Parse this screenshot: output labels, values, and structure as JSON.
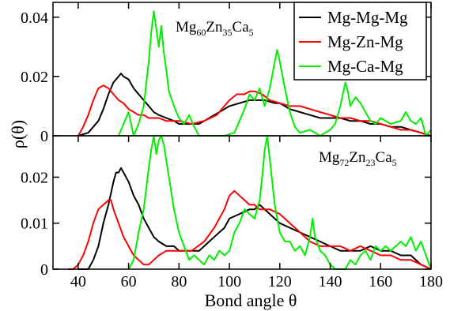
{
  "chart_data": [
    {
      "type": "line",
      "composition": {
        "base": [
          "Mg",
          "Zn",
          "Ca"
        ],
        "subscripts": [
          "60",
          "35",
          "5"
        ]
      },
      "ylim": [
        0,
        0.045
      ],
      "yticks": [
        0,
        0.02,
        0.04
      ],
      "ytick_labels": [
        "0",
        "0.02",
        "0.04"
      ],
      "legend": {
        "position": "top-right",
        "entries": [
          "Mg-Mg-Mg",
          "Mg-Zn-Mg",
          "Mg-Ca-Mg"
        ]
      },
      "series": [
        {
          "name": "Mg-Mg-Mg",
          "color": "#000000",
          "x": [
            40,
            44,
            48,
            50,
            52,
            54,
            56,
            57,
            58,
            60,
            62,
            64,
            66,
            68,
            70,
            72,
            75,
            78,
            80,
            84,
            88,
            90,
            94,
            98,
            100,
            104,
            108,
            110,
            114,
            118,
            120,
            124,
            128,
            132,
            136,
            140,
            144,
            148,
            152,
            156,
            160,
            164,
            168,
            172,
            176,
            180
          ],
          "y": [
            0.0,
            0.001,
            0.005,
            0.009,
            0.014,
            0.018,
            0.02,
            0.021,
            0.02,
            0.019,
            0.016,
            0.014,
            0.012,
            0.01,
            0.008,
            0.007,
            0.006,
            0.005,
            0.004,
            0.004,
            0.004,
            0.005,
            0.007,
            0.009,
            0.01,
            0.011,
            0.012,
            0.012,
            0.012,
            0.011,
            0.011,
            0.009,
            0.008,
            0.007,
            0.006,
            0.006,
            0.006,
            0.005,
            0.005,
            0.004,
            0.004,
            0.003,
            0.003,
            0.002,
            0.001,
            0.0
          ]
        },
        {
          "name": "Mg-Zn-Mg",
          "color": "#ff0000",
          "x": [
            40,
            42,
            44,
            46,
            48,
            50,
            52,
            54,
            56,
            58,
            60,
            62,
            64,
            66,
            68,
            70,
            72,
            75,
            80,
            85,
            90,
            95,
            98,
            100,
            103,
            106,
            108,
            110,
            113,
            116,
            120,
            124,
            128,
            132,
            136,
            140,
            144,
            148,
            152,
            156,
            160,
            164,
            168,
            172,
            176,
            180
          ],
          "y": [
            0.0,
            0.003,
            0.007,
            0.012,
            0.016,
            0.017,
            0.016,
            0.014,
            0.012,
            0.011,
            0.009,
            0.008,
            0.007,
            0.007,
            0.006,
            0.006,
            0.006,
            0.005,
            0.005,
            0.004,
            0.005,
            0.007,
            0.01,
            0.012,
            0.014,
            0.014,
            0.015,
            0.015,
            0.014,
            0.012,
            0.011,
            0.01,
            0.01,
            0.009,
            0.008,
            0.007,
            0.006,
            0.006,
            0.005,
            0.005,
            0.004,
            0.003,
            0.002,
            0.002,
            0.001,
            0.0
          ]
        },
        {
          "name": "Mg-Ca-Mg",
          "color": "#00ee00",
          "x": [
            56,
            58,
            60,
            62,
            64,
            66,
            68,
            69,
            70,
            71,
            72,
            73,
            74,
            75,
            76,
            78,
            80,
            82,
            84,
            86,
            88,
            90,
            94,
            98,
            102,
            106,
            108,
            110,
            112,
            114,
            116,
            118,
            119,
            120,
            122,
            124,
            126,
            128,
            132,
            136,
            140,
            142,
            144,
            146,
            147,
            148,
            150,
            152,
            154,
            156,
            158,
            160,
            164,
            168,
            170,
            172,
            174,
            176,
            178,
            180
          ],
          "y": [
            0.0,
            0.004,
            0.008,
            0.0,
            0.004,
            0.01,
            0.025,
            0.035,
            0.042,
            0.036,
            0.03,
            0.037,
            0.028,
            0.022,
            0.015,
            0.01,
            0.006,
            0.004,
            0.007,
            0.003,
            0.0,
            0.0,
            0.0,
            0.0,
            0.001,
            0.009,
            0.014,
            0.012,
            0.016,
            0.01,
            0.016,
            0.025,
            0.029,
            0.025,
            0.016,
            0.008,
            0.003,
            0.001,
            0.002,
            0.0,
            0.002,
            0.004,
            0.01,
            0.018,
            0.015,
            0.01,
            0.013,
            0.011,
            0.008,
            0.005,
            0.004,
            0.006,
            0.004,
            0.005,
            0.008,
            0.005,
            0.004,
            0.006,
            0.0,
            0.002
          ]
        }
      ]
    },
    {
      "type": "line",
      "composition": {
        "base": [
          "Mg",
          "Zn",
          "Ca"
        ],
        "subscripts": [
          "72",
          "23",
          "5"
        ]
      },
      "ylim": [
        0,
        0.029
      ],
      "yticks": [
        0,
        0.01,
        0.02
      ],
      "ytick_labels": [
        "0",
        "0.01",
        "0.02"
      ],
      "xlim": [
        30,
        180
      ],
      "xticks": [
        40,
        60,
        80,
        100,
        120,
        140,
        160,
        180
      ],
      "xtick_labels": [
        "40",
        "60",
        "80",
        "100",
        "120",
        "140",
        "160",
        "180"
      ],
      "xlabel": "Bond angle θ",
      "ylabel": "ρ(θ)",
      "series": [
        {
          "name": "Mg-Mg-Mg",
          "color": "#000000",
          "x": [
            40,
            44,
            46,
            48,
            50,
            52,
            54,
            55,
            56,
            57,
            58,
            60,
            62,
            64,
            66,
            68,
            70,
            72,
            75,
            78,
            80,
            84,
            88,
            90,
            94,
            98,
            100,
            104,
            108,
            110,
            112,
            116,
            120,
            124,
            128,
            132,
            136,
            140,
            144,
            148,
            152,
            156,
            160,
            164,
            168,
            172,
            176,
            180
          ],
          "y": [
            0.0,
            0.0,
            0.002,
            0.005,
            0.01,
            0.014,
            0.019,
            0.021,
            0.021,
            0.022,
            0.021,
            0.019,
            0.016,
            0.014,
            0.011,
            0.009,
            0.007,
            0.006,
            0.005,
            0.005,
            0.004,
            0.004,
            0.004,
            0.005,
            0.007,
            0.009,
            0.011,
            0.012,
            0.013,
            0.013,
            0.014,
            0.012,
            0.01,
            0.009,
            0.008,
            0.007,
            0.006,
            0.005,
            0.004,
            0.004,
            0.004,
            0.005,
            0.004,
            0.004,
            0.003,
            0.003,
            0.001,
            0.0
          ]
        },
        {
          "name": "Mg-Zn-Mg",
          "color": "#ff0000",
          "x": [
            36,
            38,
            40,
            42,
            44,
            46,
            48,
            50,
            52,
            53,
            54,
            56,
            58,
            60,
            62,
            64,
            66,
            68,
            70,
            72,
            75,
            80,
            85,
            90,
            94,
            98,
            100,
            102,
            104,
            106,
            108,
            110,
            112,
            116,
            120,
            124,
            128,
            132,
            136,
            140,
            144,
            148,
            152,
            156,
            160,
            164,
            168,
            172,
            176,
            180
          ],
          "y": [
            0.0,
            0.0,
            0.001,
            0.003,
            0.006,
            0.01,
            0.013,
            0.014,
            0.015,
            0.015,
            0.013,
            0.01,
            0.007,
            0.005,
            0.003,
            0.002,
            0.001,
            0.001,
            0.002,
            0.003,
            0.004,
            0.004,
            0.004,
            0.006,
            0.009,
            0.013,
            0.016,
            0.017,
            0.016,
            0.015,
            0.014,
            0.014,
            0.013,
            0.013,
            0.012,
            0.01,
            0.008,
            0.006,
            0.005,
            0.005,
            0.005,
            0.004,
            0.005,
            0.004,
            0.003,
            0.003,
            0.002,
            0.002,
            0.001,
            0.0
          ]
        },
        {
          "name": "Mg-Ca-Mg",
          "color": "#00ee00",
          "x": [
            60,
            62,
            64,
            66,
            68,
            69,
            70,
            71,
            72,
            73,
            74,
            76,
            78,
            80,
            82,
            84,
            86,
            88,
            90,
            92,
            94,
            96,
            98,
            100,
            102,
            104,
            106,
            108,
            110,
            112,
            113,
            114,
            115,
            116,
            118,
            120,
            122,
            124,
            126,
            128,
            130,
            132,
            133,
            134,
            136,
            138,
            140,
            142,
            144,
            146,
            148,
            150,
            152,
            154,
            156,
            158,
            160,
            162,
            164,
            166,
            168,
            170,
            172,
            174,
            176,
            178,
            180
          ],
          "y": [
            0.0,
            0.002,
            0.008,
            0.013,
            0.022,
            0.026,
            0.029,
            0.025,
            0.028,
            0.029,
            0.027,
            0.02,
            0.013,
            0.008,
            0.005,
            0.002,
            0.003,
            0.002,
            0.001,
            0.003,
            0.002,
            0.004,
            0.003,
            0.004,
            0.008,
            0.01,
            0.013,
            0.012,
            0.011,
            0.015,
            0.02,
            0.026,
            0.029,
            0.024,
            0.014,
            0.008,
            0.006,
            0.006,
            0.004,
            0.005,
            0.003,
            0.007,
            0.011,
            0.007,
            0.004,
            0.003,
            0.001,
            0.0,
            0.0,
            0.0,
            0.002,
            0.001,
            0.003,
            0.004,
            0.002,
            0.005,
            0.004,
            0.005,
            0.004,
            0.005,
            0.006,
            0.005,
            0.007,
            0.004,
            0.006,
            0.003,
            0.0
          ]
        }
      ]
    }
  ]
}
